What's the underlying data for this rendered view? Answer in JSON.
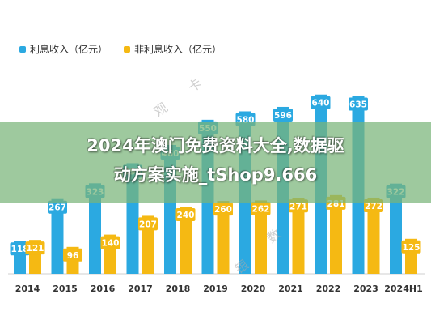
{
  "legend": {
    "interest_label": "利息收入（亿元）",
    "noninterest_label": "非利息收入（亿元）",
    "interest_color": "#2BA9E1",
    "noninterest_color": "#F5B913"
  },
  "banner": {
    "line1": "2024年澳门免费资料大全,数据驱",
    "line2": "动方案实施_tShop9.666"
  },
  "watermark": [
    "卡",
    "观",
    "银",
    "数"
  ],
  "chart_data": {
    "type": "bar",
    "stacked": false,
    "categories": [
      "2014",
      "2015",
      "2016",
      "2017",
      "2018",
      "2019",
      "2020",
      "2021",
      "2022",
      "2023",
      "2024H1"
    ],
    "series": [
      {
        "name": "利息收入（亿元）",
        "color": "#2BA9E1",
        "values": [
          118,
          267,
          323,
          395,
          460,
          550,
          580,
          596,
          640,
          635,
          322
        ]
      },
      {
        "name": "非利息收入（亿元）",
        "color": "#F5B913",
        "values": [
          121,
          96,
          140,
          207,
          240,
          260,
          262,
          271,
          281,
          272,
          125
        ]
      }
    ],
    "title": "",
    "xlabel": "",
    "ylabel": "",
    "ylim": [
      0,
      700
    ],
    "grid": false,
    "legend_position": "top-left"
  }
}
